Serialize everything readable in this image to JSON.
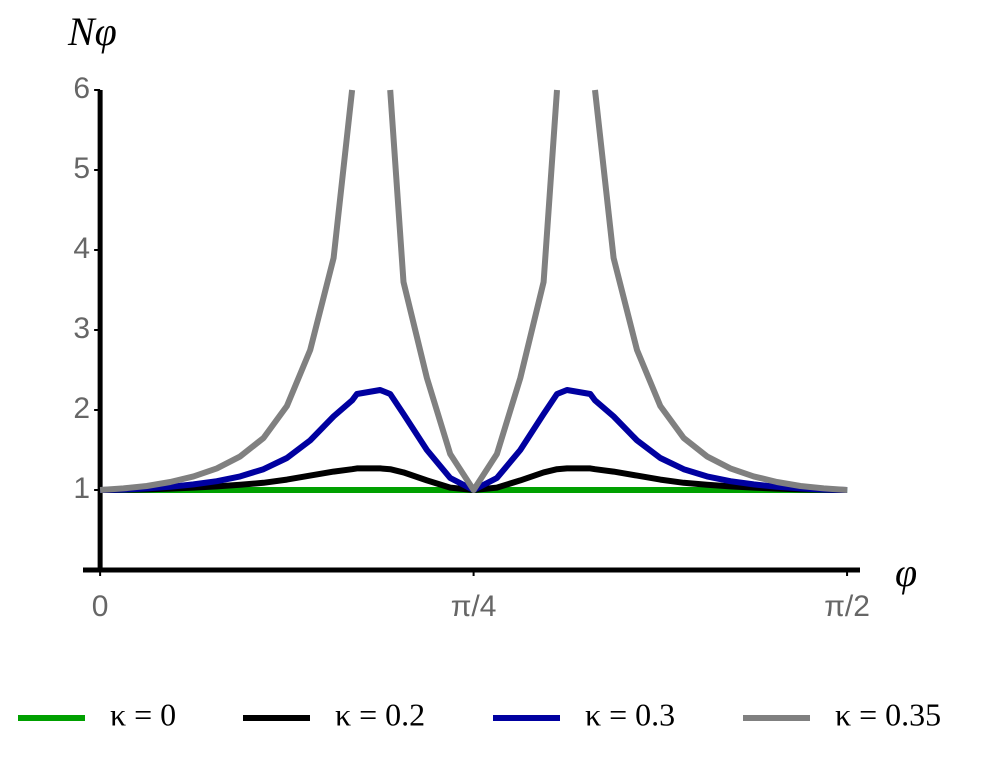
{
  "chart_data": {
    "type": "line",
    "y_label": "Nφ",
    "x_label": "φ",
    "x": [
      0,
      0.0491,
      0.0982,
      0.1473,
      0.1963,
      0.2454,
      0.2945,
      0.3436,
      0.3927,
      0.4418,
      0.4909,
      0.53,
      0.54,
      0.589,
      0.61,
      0.6381,
      0.6872,
      0.7363,
      0.7854,
      0.8345,
      0.8836,
      0.9327,
      0.9608,
      0.9818,
      1.0308,
      1.0408,
      1.0799,
      1.129,
      1.1781,
      1.2272,
      1.2763,
      1.3254,
      1.3744,
      1.4235,
      1.4726,
      1.5217,
      1.5708
    ],
    "series": [
      {
        "name": "κ = 0",
        "color": "#00a000",
        "values": [
          1,
          1,
          1,
          1,
          1,
          1,
          1,
          1,
          1,
          1,
          1,
          1,
          1,
          1,
          1,
          1,
          1,
          1,
          1,
          1,
          1,
          1,
          1,
          1,
          1,
          1,
          1,
          1,
          1,
          1,
          1,
          1,
          1,
          1,
          1,
          1,
          1
        ]
      },
      {
        "name": "κ = 0.2",
        "color": "#000000",
        "values": [
          1,
          1.002,
          1.008,
          1.017,
          1.03,
          1.045,
          1.065,
          1.09,
          1.13,
          1.18,
          1.23,
          1.26,
          1.27,
          1.27,
          1.26,
          1.22,
          1.12,
          1.03,
          1,
          1.03,
          1.12,
          1.22,
          1.26,
          1.27,
          1.27,
          1.26,
          1.23,
          1.18,
          1.13,
          1.09,
          1.065,
          1.045,
          1.03,
          1.017,
          1.008,
          1.002,
          1
        ]
      },
      {
        "name": "κ = 0.3",
        "color": "#0000a0",
        "values": [
          1,
          1.005,
          1.02,
          1.04,
          1.07,
          1.11,
          1.17,
          1.26,
          1.4,
          1.62,
          1.92,
          2.12,
          2.2,
          2.25,
          2.2,
          1.95,
          1.5,
          1.15,
          1,
          1.15,
          1.5,
          1.95,
          2.2,
          2.25,
          2.2,
          2.12,
          1.92,
          1.62,
          1.4,
          1.26,
          1.17,
          1.11,
          1.07,
          1.04,
          1.02,
          1.005,
          1
        ]
      },
      {
        "name": "κ = 0.35",
        "color": "#808080",
        "values": [
          1,
          1.02,
          1.05,
          1.1,
          1.17,
          1.27,
          1.42,
          1.65,
          2.05,
          2.75,
          3.9,
          6,
          null,
          null,
          6,
          3.6,
          2.4,
          1.45,
          1,
          1.45,
          2.4,
          3.6,
          6,
          null,
          null,
          6,
          3.9,
          2.75,
          2.05,
          1.65,
          1.42,
          1.27,
          1.17,
          1.1,
          1.05,
          1.02,
          1
        ]
      }
    ],
    "xlim": [
      -0.036,
      1.598
    ],
    "ylim": [
      0,
      6
    ],
    "xticks": [
      0,
      {
        "value": 0.7854,
        "label": "π/4"
      },
      {
        "value": 1.5708,
        "label": "π/2"
      }
    ],
    "yticks": [
      1,
      2,
      3,
      4,
      5,
      6
    ],
    "legend": "bottom"
  }
}
